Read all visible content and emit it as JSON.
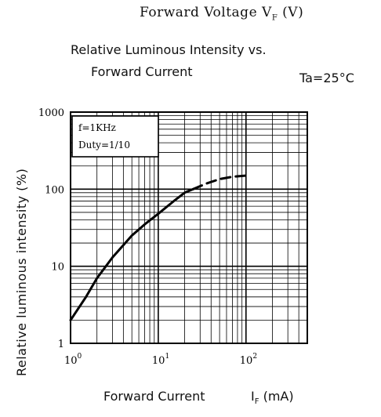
{
  "header": {
    "top_caption": "Forward Voltage  V",
    "top_caption_sub": "F",
    "top_caption_unit": "(V)"
  },
  "chart_data": {
    "type": "line",
    "title_line1": "Relative Luminous Intensity vs.",
    "title_line2": "Forward Current",
    "condition": "Ta=25°C",
    "xlabel": "Forward Current",
    "xunit_prefix": "I",
    "xunit_sub": "F",
    "xunit_suffix": "(mA)",
    "ylabel": "Relative luminous intensity (%)",
    "x_scale": "log",
    "y_scale": "log",
    "xlim": [
      1,
      500
    ],
    "ylim": [
      1,
      1000
    ],
    "grid": true,
    "x_ticks": [
      {
        "value": 1,
        "base": "10",
        "exp": "0"
      },
      {
        "value": 10,
        "base": "10",
        "exp": "1"
      },
      {
        "value": 100,
        "base": "10",
        "exp": "2"
      }
    ],
    "y_ticks": [
      {
        "value": 1,
        "label": "1"
      },
      {
        "value": 10,
        "label": "10"
      },
      {
        "value": 100,
        "label": "100"
      },
      {
        "value": 1000,
        "label": "1000"
      }
    ],
    "legend": {
      "position": "top-left",
      "lines": [
        "f=1KHz",
        "Duty=1/10"
      ]
    },
    "series": [
      {
        "style": "solid",
        "x": [
          1,
          1.5,
          2,
          3,
          5,
          7,
          10,
          15,
          20,
          25
        ],
        "y": [
          2,
          4,
          7,
          13,
          25,
          35,
          48,
          70,
          90,
          100
        ]
      },
      {
        "style": "dashed",
        "x": [
          25,
          35,
          50,
          70,
          100
        ],
        "y": [
          100,
          118,
          135,
          145,
          150
        ]
      }
    ]
  }
}
